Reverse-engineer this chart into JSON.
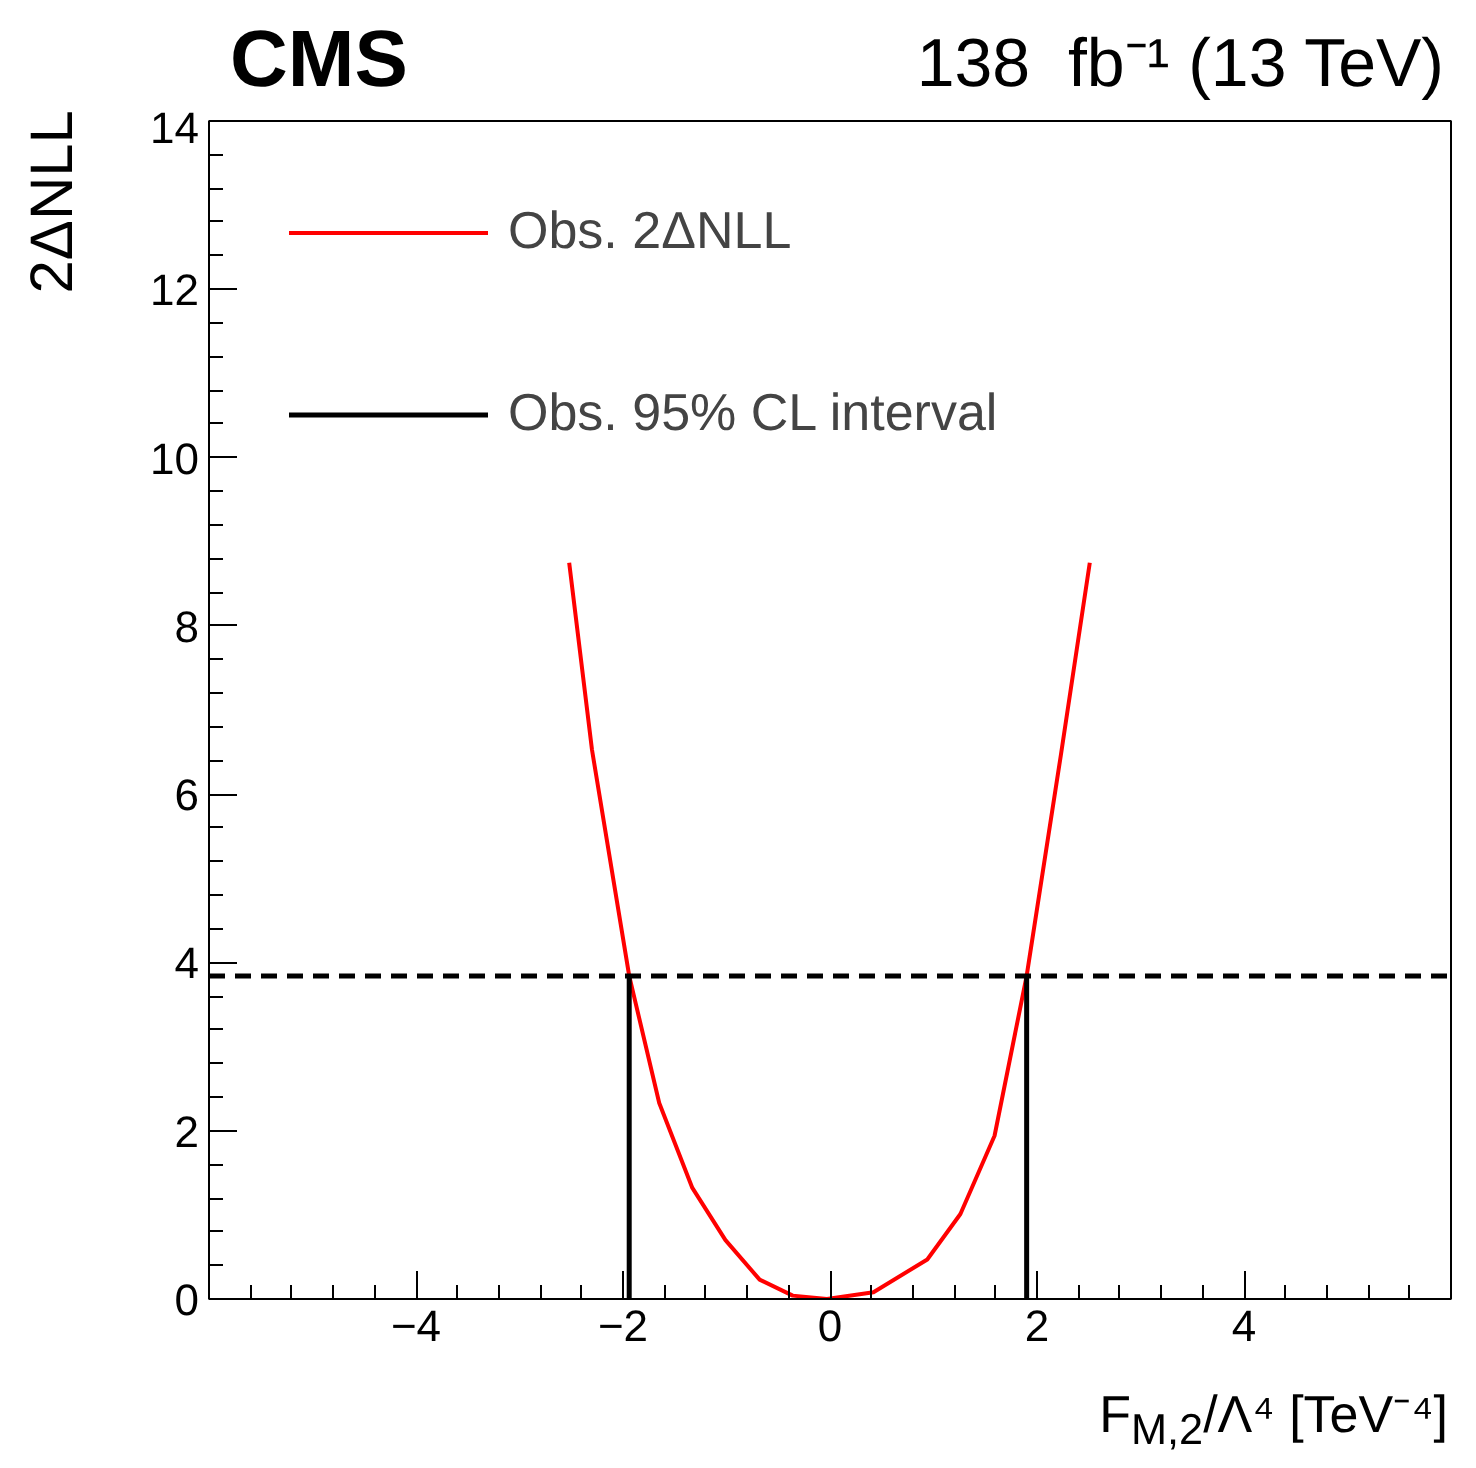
{
  "chart_data": {
    "type": "line",
    "xlabel": "F$_{M,2}$/Λ⁴ [TeV⁻⁴]",
    "ylabel": "2ΔNLL",
    "annotations": [
      "CMS",
      "138  fb⁻¹ (13 TeV)"
    ],
    "xlim": [
      -6,
      6
    ],
    "ylim": [
      0,
      14
    ],
    "xticks": [
      -4,
      -2,
      0,
      2,
      4
    ],
    "yticks": [
      0,
      2,
      4,
      6,
      8,
      10,
      12,
      14
    ],
    "series": [
      {
        "name": "Obs. 2ΔNLL",
        "color": "#ff0000",
        "x": [
          -2.52,
          -2.3,
          -1.94,
          -1.65,
          -1.33,
          -1.01,
          -0.68,
          -0.36,
          -0.03,
          0.42,
          0.94,
          1.26,
          1.59,
          1.9,
          2.23,
          2.51
        ],
        "values": [
          8.75,
          6.53,
          3.84,
          2.33,
          1.32,
          0.7,
          0.23,
          0.04,
          0,
          0.08,
          0.47,
          1.01,
          1.94,
          3.84,
          6.46,
          8.75
        ]
      },
      {
        "name": "Obs. 95% CL interval",
        "color": "#000000",
        "x": [
          -1.94,
          -1.94,
          0,
          1.9,
          1.9
        ],
        "values": [
          0,
          3.84,
          null,
          3.84,
          0
        ]
      }
    ],
    "ref_lines": [
      {
        "axis": "y",
        "value": 3.84,
        "label": null,
        "color": "#000000",
        "line_style": "dashed"
      }
    ],
    "legend": "top left",
    "grid": false
  }
}
